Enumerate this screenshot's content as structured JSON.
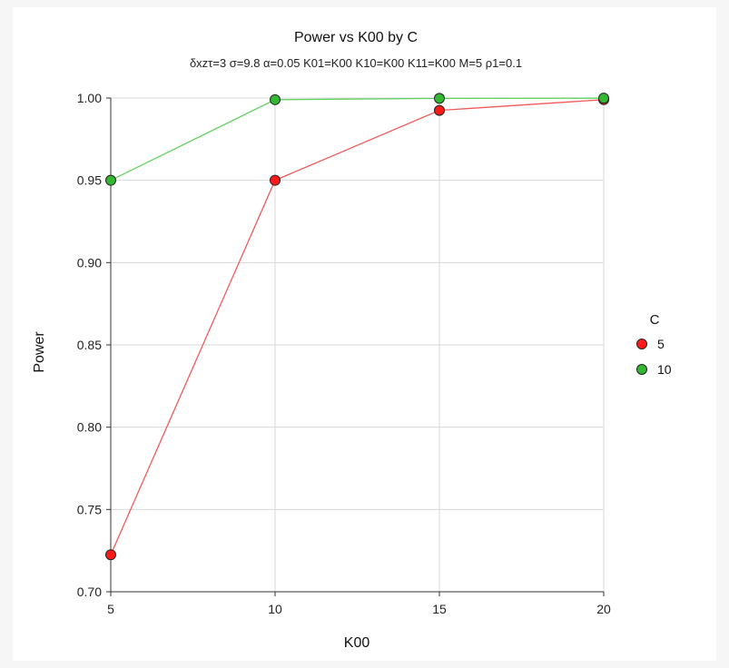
{
  "chart_data": {
    "type": "line",
    "title": "Power vs K00 by C",
    "subtitle": "δxzτ=3 σ=9.8 α=0.05 K01=K00 K10=K00 K11=K00 M=5 ρ1=0.1",
    "xlabel": "K00",
    "ylabel": "Power",
    "x": [
      5,
      10,
      15,
      20
    ],
    "xlim": [
      5,
      20
    ],
    "ylim": [
      0.7,
      1.0
    ],
    "xticks": [
      "5",
      "10",
      "15",
      "20"
    ],
    "yticks": [
      "0.70",
      "0.75",
      "0.80",
      "0.85",
      "0.90",
      "0.95",
      "1.00"
    ],
    "grid": true,
    "legend": {
      "title": "C",
      "position": "right"
    },
    "series": [
      {
        "name": "5",
        "color": "#ff1a1a",
        "line_color": "#f25a5a",
        "values": [
          0.7225,
          0.95,
          0.9925,
          0.999
        ]
      },
      {
        "name": "10",
        "color": "#33b833",
        "line_color": "#5fd35f",
        "values": [
          0.95,
          0.999,
          0.9998,
          0.9999
        ]
      }
    ]
  }
}
